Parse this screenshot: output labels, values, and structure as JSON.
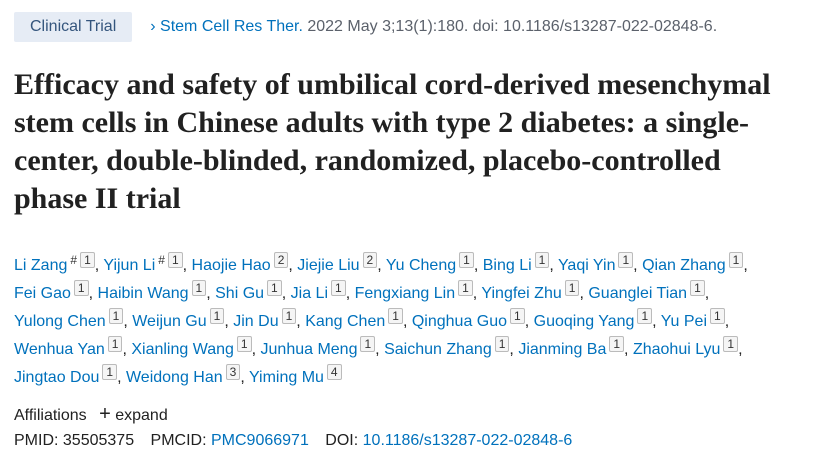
{
  "badge": "Clinical Trial",
  "citation": {
    "arrow": "›",
    "journal": "Stem Cell Res Ther.",
    "details": "2022 May 3;13(1):180. doi: 10.1186/s13287-022-02848-6."
  },
  "title": "Efficacy and safety of umbilical cord-derived mesenchymal stem cells in Chinese adults with type 2 diabetes: a single-center, double-blinded, randomized, placebo-controlled phase II trial",
  "separator": ",",
  "authors": [
    {
      "name": "Li Zang",
      "marks": [
        "#",
        "1"
      ]
    },
    {
      "name": "Yijun Li",
      "marks": [
        "#",
        "1"
      ]
    },
    {
      "name": "Haojie Hao",
      "marks": [
        "2"
      ]
    },
    {
      "name": "Jiejie Liu",
      "marks": [
        "2"
      ]
    },
    {
      "name": "Yu Cheng",
      "marks": [
        "1"
      ]
    },
    {
      "name": "Bing Li",
      "marks": [
        "1"
      ]
    },
    {
      "name": "Yaqi Yin",
      "marks": [
        "1"
      ]
    },
    {
      "name": "Qian Zhang",
      "marks": [
        "1"
      ]
    },
    {
      "name": "Fei Gao",
      "marks": [
        "1"
      ]
    },
    {
      "name": "Haibin Wang",
      "marks": [
        "1"
      ]
    },
    {
      "name": "Shi Gu",
      "marks": [
        "1"
      ]
    },
    {
      "name": "Jia Li",
      "marks": [
        "1"
      ]
    },
    {
      "name": "Fengxiang Lin",
      "marks": [
        "1"
      ]
    },
    {
      "name": "Yingfei Zhu",
      "marks": [
        "1"
      ]
    },
    {
      "name": "Guanglei Tian",
      "marks": [
        "1"
      ]
    },
    {
      "name": "Yulong Chen",
      "marks": [
        "1"
      ]
    },
    {
      "name": "Weijun Gu",
      "marks": [
        "1"
      ]
    },
    {
      "name": "Jin Du",
      "marks": [
        "1"
      ]
    },
    {
      "name": "Kang Chen",
      "marks": [
        "1"
      ]
    },
    {
      "name": "Qinghua Guo",
      "marks": [
        "1"
      ]
    },
    {
      "name": "Guoqing Yang",
      "marks": [
        "1"
      ]
    },
    {
      "name": "Yu Pei",
      "marks": [
        "1"
      ]
    },
    {
      "name": "Wenhua Yan",
      "marks": [
        "1"
      ]
    },
    {
      "name": "Xianling Wang",
      "marks": [
        "1"
      ]
    },
    {
      "name": "Junhua Meng",
      "marks": [
        "1"
      ]
    },
    {
      "name": "Saichun Zhang",
      "marks": [
        "1"
      ]
    },
    {
      "name": "Jianming Ba",
      "marks": [
        "1"
      ]
    },
    {
      "name": "Zhaohui Lyu",
      "marks": [
        "1"
      ]
    },
    {
      "name": "Jingtao Dou",
      "marks": [
        "1"
      ]
    },
    {
      "name": "Weidong Han",
      "marks": [
        "3"
      ]
    },
    {
      "name": "Yiming Mu",
      "marks": [
        "4"
      ]
    }
  ],
  "affiliations": {
    "label": "Affiliations",
    "toggle_icon": "+",
    "toggle": "expand"
  },
  "identifiers": {
    "pmid_label": "PMID:",
    "pmid": "35505375",
    "pmcid_label": "PMCID:",
    "pmcid": "PMC9066971",
    "doi_label": "DOI:",
    "doi": "10.1186/s13287-022-02848-6"
  }
}
